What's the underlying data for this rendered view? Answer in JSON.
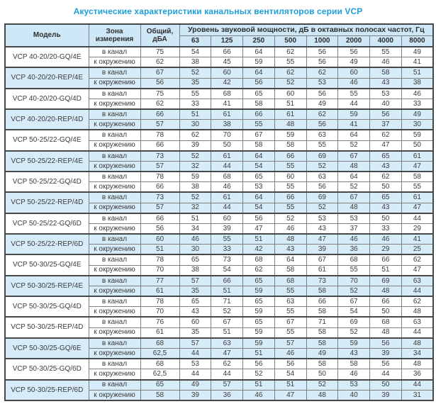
{
  "title": "Акустические характеристики канальных вентиляторов  серии VCP",
  "colors": {
    "accent": "#1f9fda",
    "header_bg": "#cfe8f7",
    "row_highlight": "#d7ecf9",
    "border": "#7e7e7e",
    "border_strong": "#474747",
    "text": "#3c3c3c"
  },
  "table": {
    "headers": {
      "model": "Модель",
      "zone": "Зона измерения",
      "total": "Общий, дБА",
      "spectrum": "Уровень звуковой мощности, дБ в октавных полосах частот, Гц",
      "frequencies": [
        "63",
        "125",
        "250",
        "500",
        "1000",
        "2000",
        "4000",
        "8000"
      ]
    },
    "groups": [
      {
        "model": "VCP 40-20/20-GQ/4E",
        "shaded": false,
        "rows": [
          {
            "zone": "в канал",
            "total": "75",
            "levels": [
              54,
              66,
              64,
              62,
              56,
              56,
              55,
              49
            ]
          },
          {
            "zone": "к окружению",
            "total": "62",
            "levels": [
              38,
              45,
              59,
              55,
              56,
              49,
              46,
              41
            ]
          }
        ]
      },
      {
        "model": "VCP 40-20/20-REP/4E",
        "shaded": true,
        "rows": [
          {
            "zone": "в канал",
            "total": "67",
            "levels": [
              52,
              60,
              64,
              62,
              62,
              60,
              58,
              51
            ]
          },
          {
            "zone": "к окружению",
            "total": "56",
            "levels": [
              35,
              42,
              56,
              52,
              53,
              46,
              43,
              38
            ]
          }
        ]
      },
      {
        "model": "VCP 40-20/20-GQ/4D",
        "shaded": false,
        "rows": [
          {
            "zone": "в канал",
            "total": "75",
            "levels": [
              55,
              68,
              65,
              60,
              56,
              55,
              53,
              46
            ]
          },
          {
            "zone": "к окружению",
            "total": "62",
            "levels": [
              33,
              41,
              58,
              51,
              49,
              44,
              40,
              33
            ]
          }
        ]
      },
      {
        "model": "VCP 40-20/20-REP/4D",
        "shaded": true,
        "rows": [
          {
            "zone": "в канал",
            "total": "66",
            "levels": [
              51,
              61,
              66,
              61,
              62,
              59,
              56,
              49
            ]
          },
          {
            "zone": "к окружению",
            "total": "57",
            "levels": [
              30,
              38,
              55,
              48,
              56,
              41,
              37,
              30
            ]
          }
        ]
      },
      {
        "model": "VCP 50-25/22-GQ/4E",
        "shaded": false,
        "rows": [
          {
            "zone": "в канал",
            "total": "78",
            "levels": [
              62,
              70,
              67,
              59,
              63,
              64,
              62,
              59
            ]
          },
          {
            "zone": "к окружению",
            "total": "66",
            "levels": [
              39,
              50,
              58,
              58,
              55,
              52,
              47,
              50
            ]
          }
        ]
      },
      {
        "model": "VCP 50-25/22-REP/4E",
        "shaded": true,
        "rows": [
          {
            "zone": "в канал",
            "total": "73",
            "levels": [
              52,
              61,
              64,
              66,
              69,
              67,
              65,
              61
            ]
          },
          {
            "zone": "к окружению",
            "total": "57",
            "levels": [
              32,
              44,
              54,
              55,
              52,
              48,
              43,
              47
            ]
          }
        ]
      },
      {
        "model": "VCP 50-25/22-GQ/4D",
        "shaded": false,
        "rows": [
          {
            "zone": "в канал",
            "total": "78",
            "levels": [
              59,
              68,
              65,
              60,
              63,
              64,
              62,
              58
            ]
          },
          {
            "zone": "к окружению",
            "total": "66",
            "levels": [
              38,
              46,
              53,
              55,
              56,
              52,
              50,
              55
            ]
          }
        ]
      },
      {
        "model": "VCP 50-25/22-REP/4D",
        "shaded": true,
        "rows": [
          {
            "zone": "в канал",
            "total": "73",
            "levels": [
              52,
              61,
              64,
              66,
              69,
              67,
              65,
              61
            ]
          },
          {
            "zone": "к окружению",
            "total": "57",
            "levels": [
              32,
              44,
              54,
              55,
              52,
              48,
              43,
              47
            ]
          }
        ]
      },
      {
        "model": "VCP 50-25/22-GQ/6D",
        "shaded": false,
        "rows": [
          {
            "zone": "в канал",
            "total": "66",
            "levels": [
              51,
              60,
              56,
              52,
              53,
              53,
              50,
              44
            ]
          },
          {
            "zone": "к окружению",
            "total": "56",
            "levels": [
              34,
              39,
              47,
              46,
              43,
              37,
              33,
              29
            ]
          }
        ]
      },
      {
        "model": "VCP 50-25/22-REP/6D",
        "shaded": true,
        "rows": [
          {
            "zone": "в канал",
            "total": "60",
            "levels": [
              46,
              55,
              51,
              48,
              47,
              46,
              46,
              41
            ]
          },
          {
            "zone": "к окружению",
            "total": "51",
            "levels": [
              30,
              33,
              42,
              43,
              39,
              36,
              29,
              25
            ]
          }
        ]
      },
      {
        "model": "VCP 50-30/25-GQ/4E",
        "shaded": false,
        "rows": [
          {
            "zone": "в канал",
            "total": "78",
            "levels": [
              65,
              73,
              68,
              64,
              67,
              68,
              66,
              62
            ]
          },
          {
            "zone": "к окружению",
            "total": "70",
            "levels": [
              38,
              54,
              62,
              58,
              61,
              55,
              51,
              47
            ]
          }
        ]
      },
      {
        "model": "VCP 50-30/25-REP/4E",
        "shaded": true,
        "rows": [
          {
            "zone": "в канал",
            "total": "77",
            "levels": [
              57,
              66,
              65,
              68,
              73,
              70,
              69,
              63
            ]
          },
          {
            "zone": "к окружению",
            "total": "61",
            "levels": [
              35,
              51,
              59,
              55,
              58,
              52,
              48,
              44
            ]
          }
        ]
      },
      {
        "model": "VCP 50-30/25-GQ/4D",
        "shaded": false,
        "rows": [
          {
            "zone": "в канал",
            "total": "78",
            "levels": [
              65,
              71,
              65,
              63,
              66,
              67,
              66,
              62
            ]
          },
          {
            "zone": "к окружению",
            "total": "70",
            "levels": [
              43,
              52,
              59,
              55,
              58,
              54,
              50,
              48
            ]
          }
        ]
      },
      {
        "model": "VCP 50-30/25-REP/4D",
        "shaded": false,
        "rows": [
          {
            "zone": "в канал",
            "total": "76",
            "levels": [
              60,
              67,
              65,
              67,
              71,
              69,
              68,
              63
            ]
          },
          {
            "zone": "к окружению",
            "total": "61",
            "levels": [
              35,
              51,
              59,
              55,
              58,
              52,
              48,
              44
            ]
          }
        ]
      },
      {
        "model": "VCP 50-30/25-GQ/6E",
        "shaded": true,
        "rows": [
          {
            "zone": "в канал",
            "total": "68",
            "levels": [
              57,
              63,
              59,
              57,
              58,
              59,
              56,
              48
            ]
          },
          {
            "zone": "к окружению",
            "total": "62,5",
            "levels": [
              44,
              47,
              51,
              46,
              49,
              43,
              39,
              34
            ]
          }
        ]
      },
      {
        "model": "VCP 50-30/25-GQ/6D",
        "shaded": false,
        "rows": [
          {
            "zone": "в канал",
            "total": "68",
            "levels": [
              53,
              62,
              56,
              56,
              58,
              58,
              56,
              48
            ]
          },
          {
            "zone": "к окружению",
            "total": "62,5",
            "levels": [
              44,
              44,
              52,
              54,
              50,
              46,
              44,
              36
            ]
          }
        ]
      },
      {
        "model": "VCP 50-30/25-REP/6D",
        "shaded": true,
        "rows": [
          {
            "zone": "в канал",
            "total": "65",
            "levels": [
              49,
              57,
              51,
              51,
              52,
              53,
              50,
              44
            ]
          },
          {
            "zone": "к окружению",
            "total": "58",
            "levels": [
              39,
              36,
              46,
              47,
              48,
              40,
              39,
              31
            ]
          }
        ]
      }
    ]
  }
}
